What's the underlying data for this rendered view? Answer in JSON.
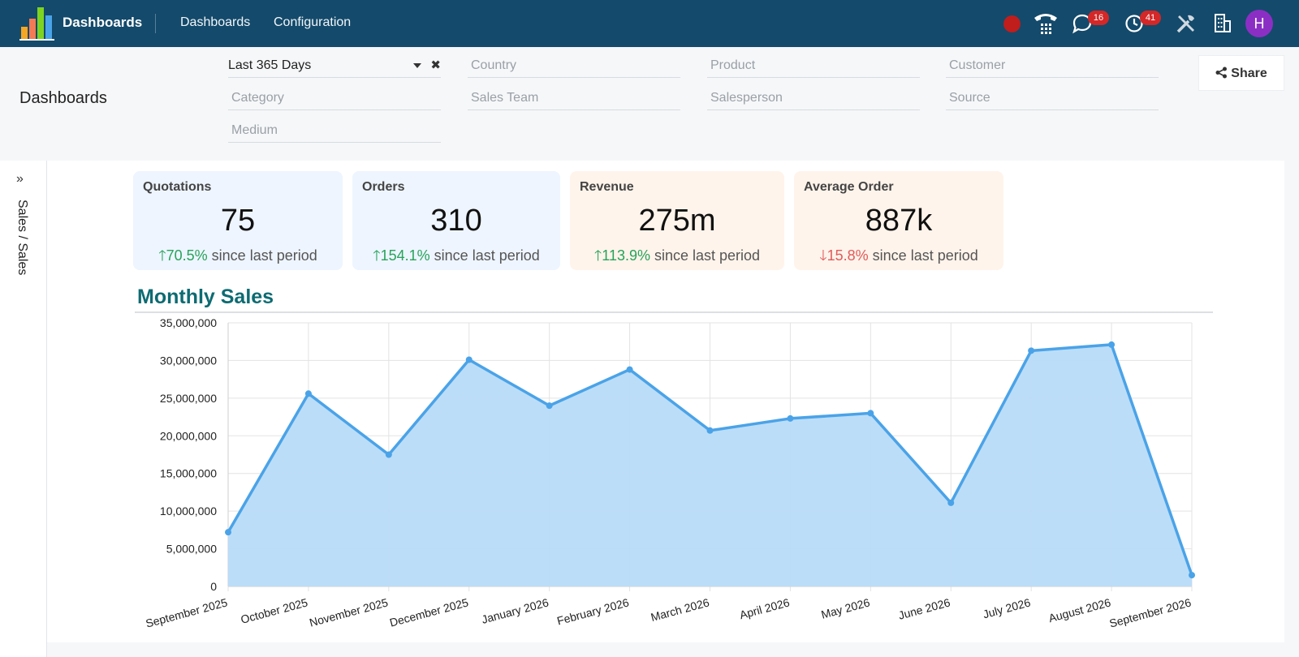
{
  "topbar": {
    "app_name": "Dashboards",
    "nav": [
      "Dashboards",
      "Configuration"
    ],
    "badges": {
      "messages": "16",
      "activities": "41"
    },
    "avatar_initial": "H",
    "colors": {
      "bg": "#144a6b",
      "badge": "#d42727",
      "avatar": "#8b2fc4"
    }
  },
  "control_panel": {
    "title": "Dashboards",
    "share_label": "Share",
    "filters": {
      "date_range": "Last 365 Days",
      "country": "Country",
      "product": "Product",
      "customer": "Customer",
      "category": "Category",
      "sales_team": "Sales Team",
      "salesperson": "Salesperson",
      "source": "Source",
      "medium": "Medium"
    }
  },
  "sidebar": {
    "label": "Sales / Sales",
    "toggle_icon": "double-chevron-right-icon"
  },
  "kpis": [
    {
      "title": "Quotations",
      "value": "75",
      "change": "70.5%",
      "direction": "up",
      "suffix": " since last period"
    },
    {
      "title": "Orders",
      "value": "310",
      "change": "154.1%",
      "direction": "up",
      "suffix": " since last period"
    },
    {
      "title": "Revenue",
      "value": "275m",
      "change": "113.9%",
      "direction": "up",
      "suffix": " since last period"
    },
    {
      "title": "Average Order",
      "value": "887k",
      "change": "15.8%",
      "direction": "down",
      "suffix": " since last period"
    }
  ],
  "chart_title": "Monthly Sales",
  "chart_data": {
    "type": "area",
    "categories": [
      "September 2025",
      "October 2025",
      "November 2025",
      "December 2025",
      "January 2026",
      "February 2026",
      "March 2026",
      "April 2026",
      "May 2026",
      "June 2026",
      "July 2026",
      "August 2026",
      "September 2026"
    ],
    "series": [
      {
        "values": [
          7200000,
          25600000,
          17500000,
          30100000,
          24000000,
          28800000,
          20700000,
          22300000,
          23000000,
          11100000,
          31300000,
          32100000,
          1500000
        ]
      }
    ],
    "yticks": [
      "0",
      "5,000,000",
      "10,000,000",
      "15,000,000",
      "20,000,000",
      "25,000,000",
      "30,000,000",
      "35,000,000"
    ],
    "ylim": [
      0,
      35000000
    ],
    "grid": true,
    "colors": {
      "line": "#4aa3e8",
      "fill": "#b8dbf8"
    }
  }
}
